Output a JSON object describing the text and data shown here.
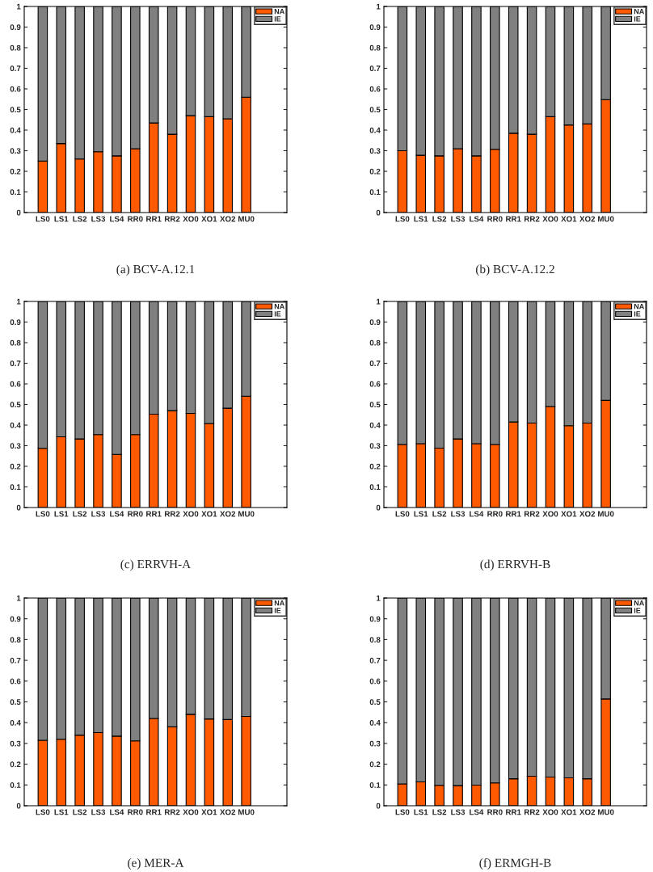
{
  "chart_data": [
    {
      "type": "bar",
      "title": "(a) BCV-A.12.1",
      "stacked": true,
      "legend": "top right",
      "grid": false,
      "ylim": [
        0,
        1
      ],
      "yticks": [
        0,
        0.1,
        0.2,
        0.3,
        0.4,
        0.5,
        0.6,
        0.7,
        0.8,
        0.9,
        1
      ],
      "categories": [
        "LS0",
        "LS1",
        "LS2",
        "LS3",
        "LS4",
        "RR0",
        "RR1",
        "RR2",
        "XO0",
        "XO1",
        "XO2",
        "MU0"
      ],
      "series": [
        {
          "name": "NA",
          "color": "#ff5a00",
          "values": [
            0.25,
            0.335,
            0.26,
            0.295,
            0.275,
            0.31,
            0.435,
            0.38,
            0.47,
            0.465,
            0.455,
            0.56
          ]
        },
        {
          "name": "IE",
          "color": "#808080",
          "values": [
            0.75,
            0.665,
            0.74,
            0.705,
            0.725,
            0.69,
            0.565,
            0.62,
            0.53,
            0.535,
            0.545,
            0.44
          ]
        }
      ]
    },
    {
      "type": "bar",
      "title": "(b) BCV-A.12.2",
      "stacked": true,
      "legend": "top right",
      "grid": false,
      "ylim": [
        0,
        1
      ],
      "yticks": [
        0,
        0.1,
        0.2,
        0.3,
        0.4,
        0.5,
        0.6,
        0.7,
        0.8,
        0.9,
        1
      ],
      "categories": [
        "LS0",
        "LS1",
        "LS2",
        "LS3",
        "LS4",
        "RR0",
        "RR1",
        "RR2",
        "XO0",
        "XO1",
        "XO2",
        "MU0"
      ],
      "series": [
        {
          "name": "NA",
          "color": "#ff5a00",
          "values": [
            0.3,
            0.278,
            0.275,
            0.31,
            0.275,
            0.307,
            0.385,
            0.38,
            0.465,
            0.425,
            0.43,
            0.548
          ]
        },
        {
          "name": "IE",
          "color": "#808080",
          "values": [
            0.7,
            0.722,
            0.725,
            0.69,
            0.725,
            0.693,
            0.615,
            0.62,
            0.535,
            0.575,
            0.57,
            0.452
          ]
        }
      ]
    },
    {
      "type": "bar",
      "title": "(c) ERRVH-A",
      "stacked": true,
      "legend": "top right",
      "grid": false,
      "ylim": [
        0,
        1
      ],
      "yticks": [
        0,
        0.1,
        0.2,
        0.3,
        0.4,
        0.5,
        0.6,
        0.7,
        0.8,
        0.9,
        1
      ],
      "categories": [
        "LS0",
        "LS1",
        "LS2",
        "LS3",
        "LS4",
        "RR0",
        "RR1",
        "RR2",
        "XO0",
        "XO1",
        "XO2",
        "MU0"
      ],
      "series": [
        {
          "name": "NA",
          "color": "#ff5a00",
          "values": [
            0.287,
            0.343,
            0.333,
            0.354,
            0.258,
            0.354,
            0.453,
            0.47,
            0.457,
            0.408,
            0.482,
            0.54
          ]
        },
        {
          "name": "IE",
          "color": "#808080",
          "values": [
            0.713,
            0.657,
            0.667,
            0.646,
            0.742,
            0.646,
            0.547,
            0.53,
            0.543,
            0.592,
            0.518,
            0.46
          ]
        }
      ]
    },
    {
      "type": "bar",
      "title": "(d) ERRVH-B",
      "stacked": true,
      "legend": "top right",
      "grid": false,
      "ylim": [
        0,
        1
      ],
      "yticks": [
        0,
        0.1,
        0.2,
        0.3,
        0.4,
        0.5,
        0.6,
        0.7,
        0.8,
        0.9,
        1
      ],
      "categories": [
        "LS0",
        "LS1",
        "LS2",
        "LS3",
        "LS4",
        "RR0",
        "RR1",
        "RR2",
        "XO0",
        "XO1",
        "XO2",
        "MU0"
      ],
      "series": [
        {
          "name": "NA",
          "color": "#ff5a00",
          "values": [
            0.306,
            0.31,
            0.288,
            0.333,
            0.31,
            0.306,
            0.415,
            0.41,
            0.49,
            0.397,
            0.41,
            0.52
          ]
        },
        {
          "name": "IE",
          "color": "#808080",
          "values": [
            0.694,
            0.69,
            0.712,
            0.667,
            0.69,
            0.694,
            0.585,
            0.59,
            0.51,
            0.603,
            0.59,
            0.48
          ]
        }
      ]
    },
    {
      "type": "bar",
      "title": "(e) MER-A",
      "stacked": true,
      "legend": "top right",
      "grid": false,
      "ylim": [
        0,
        1
      ],
      "yticks": [
        0,
        0.1,
        0.2,
        0.3,
        0.4,
        0.5,
        0.6,
        0.7,
        0.8,
        0.9,
        1
      ],
      "categories": [
        "LS0",
        "LS1",
        "LS2",
        "LS3",
        "LS4",
        "RR0",
        "RR1",
        "RR2",
        "XO0",
        "XO1",
        "XO2",
        "MU0"
      ],
      "series": [
        {
          "name": "NA",
          "color": "#ff5a00",
          "values": [
            0.315,
            0.32,
            0.34,
            0.352,
            0.335,
            0.312,
            0.42,
            0.38,
            0.44,
            0.418,
            0.415,
            0.43
          ]
        },
        {
          "name": "IE",
          "color": "#808080",
          "values": [
            0.685,
            0.68,
            0.66,
            0.648,
            0.665,
            0.688,
            0.58,
            0.62,
            0.56,
            0.582,
            0.585,
            0.57
          ]
        }
      ]
    },
    {
      "type": "bar",
      "title": "(f) ERMGH-B",
      "stacked": true,
      "legend": "top right",
      "grid": false,
      "ylim": [
        0,
        1
      ],
      "yticks": [
        0,
        0.1,
        0.2,
        0.3,
        0.4,
        0.5,
        0.6,
        0.7,
        0.8,
        0.9,
        1
      ],
      "categories": [
        "LS0",
        "LS1",
        "LS2",
        "LS3",
        "LS4",
        "RR0",
        "RR1",
        "RR2",
        "XO0",
        "XO1",
        "XO2",
        "MU0"
      ],
      "series": [
        {
          "name": "NA",
          "color": "#ff5a00",
          "values": [
            0.105,
            0.115,
            0.098,
            0.097,
            0.099,
            0.11,
            0.13,
            0.142,
            0.138,
            0.134,
            0.13,
            0.514
          ]
        },
        {
          "name": "IE",
          "color": "#808080",
          "values": [
            0.895,
            0.885,
            0.902,
            0.903,
            0.901,
            0.89,
            0.87,
            0.858,
            0.862,
            0.866,
            0.87,
            0.486
          ]
        }
      ]
    }
  ]
}
